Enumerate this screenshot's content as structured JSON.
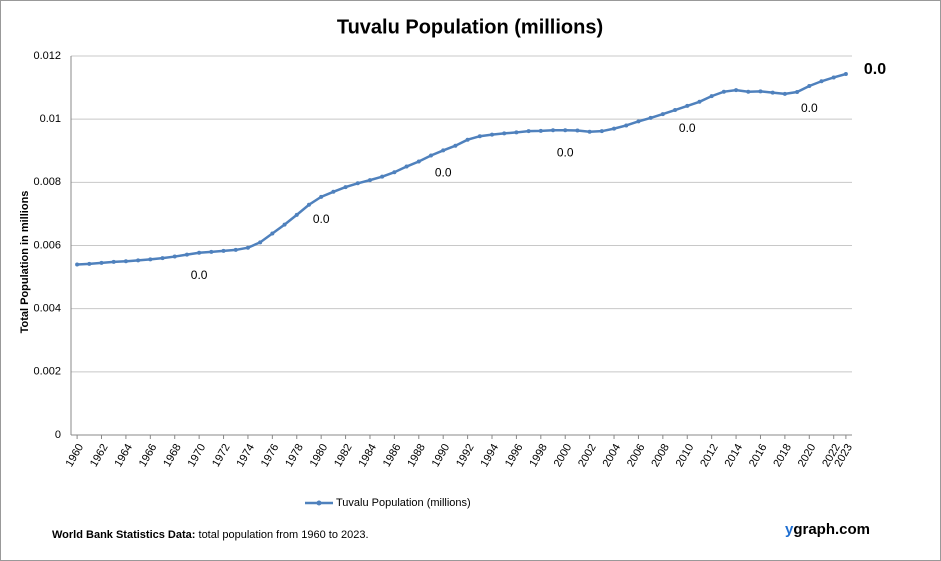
{
  "chart_data": {
    "type": "line",
    "title": "Tuvalu Population (millions)",
    "y_label": "Total Population  in millions",
    "x": [
      1960,
      1961,
      1962,
      1963,
      1964,
      1965,
      1966,
      1967,
      1968,
      1969,
      1970,
      1971,
      1972,
      1973,
      1974,
      1975,
      1976,
      1977,
      1978,
      1979,
      1980,
      1981,
      1982,
      1983,
      1984,
      1985,
      1986,
      1987,
      1988,
      1989,
      1990,
      1991,
      1992,
      1993,
      1994,
      1995,
      1996,
      1997,
      1998,
      1999,
      2000,
      2001,
      2002,
      2003,
      2004,
      2005,
      2006,
      2007,
      2008,
      2009,
      2010,
      2011,
      2012,
      2013,
      2014,
      2015,
      2016,
      2017,
      2018,
      2019,
      2020,
      2021,
      2022,
      2023
    ],
    "series": [
      {
        "name": "Tuvalu Population (millions)",
        "color": "#4f81bd",
        "values": [
          0.0054,
          0.00542,
          0.00545,
          0.00548,
          0.0055,
          0.00553,
          0.00556,
          0.0056,
          0.00565,
          0.00571,
          0.00577,
          0.0058,
          0.00583,
          0.00586,
          0.00593,
          0.0061,
          0.00638,
          0.00666,
          0.00697,
          0.00729,
          0.00754,
          0.0077,
          0.00785,
          0.00797,
          0.00807,
          0.00818,
          0.00832,
          0.0085,
          0.00866,
          0.00885,
          0.00901,
          0.00916,
          0.00935,
          0.00946,
          0.00951,
          0.00955,
          0.00958,
          0.00962,
          0.00963,
          0.00965,
          0.00965,
          0.00964,
          0.0096,
          0.00962,
          0.0097,
          0.0098,
          0.00993,
          0.01004,
          0.01016,
          0.01029,
          0.01042,
          0.01055,
          0.01073,
          0.01087,
          0.01092,
          0.01087,
          0.01088,
          0.01084,
          0.0108,
          0.01086,
          0.01105,
          0.0112,
          0.01132,
          0.01143
        ],
        "value_labels": [
          null,
          null,
          null,
          null,
          null,
          null,
          null,
          null,
          null,
          null,
          "0.0",
          null,
          null,
          null,
          null,
          null,
          null,
          null,
          null,
          null,
          "0.0",
          null,
          null,
          null,
          null,
          null,
          null,
          null,
          null,
          null,
          "0.0",
          null,
          null,
          null,
          null,
          null,
          null,
          null,
          null,
          null,
          "0.0",
          null,
          null,
          null,
          null,
          null,
          null,
          null,
          null,
          null,
          "0.0",
          null,
          null,
          null,
          null,
          null,
          null,
          null,
          null,
          null,
          "0.0",
          null,
          null,
          "0.0"
        ]
      }
    ],
    "xlim": [
      1960,
      2023
    ],
    "xticks": [
      1960,
      1962,
      1964,
      1966,
      1968,
      1970,
      1972,
      1974,
      1976,
      1978,
      1980,
      1982,
      1984,
      1986,
      1988,
      1990,
      1992,
      1994,
      1996,
      1998,
      2000,
      2002,
      2004,
      2006,
      2008,
      2010,
      2012,
      2014,
      2016,
      2018,
      2020,
      2022,
      2023
    ],
    "ylim": [
      0,
      0.012
    ],
    "yticks": [
      0,
      0.002,
      0.004,
      0.006,
      0.008,
      0.01,
      0.012
    ],
    "grid": true,
    "legend": "bottom"
  },
  "footer": {
    "source_bold": "World Bank Statistics Data:",
    "source_text": " total population from 1960 to 2023."
  },
  "brand": {
    "prefix": "y",
    "rest": "graph.com"
  }
}
